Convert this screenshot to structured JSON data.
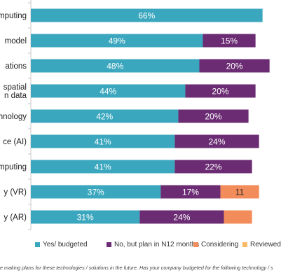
{
  "chart_data": {
    "type": "bar",
    "orientation": "horizontal",
    "stacked": true,
    "title": "",
    "xlabel": "",
    "ylabel": "",
    "xlim": [
      0,
      100
    ],
    "legend_position": "bottom",
    "categories": [
      [
        "omputing"
      ],
      [
        "model"
      ],
      [
        "ations"
      ],
      [
        "spatial",
        "n data"
      ],
      [
        "chnology"
      ],
      [
        "ce (AI)"
      ],
      [
        "mputing"
      ],
      [
        "y (VR)"
      ],
      [
        "y (AR)"
      ]
    ],
    "series": [
      {
        "name": "Yes/ budgeted",
        "color": "#3BA7BE",
        "values": [
          66,
          49,
          48,
          44,
          42,
          41,
          41,
          37,
          31
        ],
        "labels": [
          "66%",
          "49%",
          "48%",
          "44%",
          "42%",
          "41%",
          "41%",
          "37%",
          "31%"
        ]
      },
      {
        "name": "No, but plan in N12 months",
        "color": "#6B2C73",
        "values": [
          0,
          15,
          20,
          20,
          20,
          24,
          22,
          17,
          24
        ],
        "labels": [
          "",
          "15%",
          "20%",
          "20%",
          "20%",
          "24%",
          "22%",
          "17%",
          "24%"
        ]
      },
      {
        "name": "Considering",
        "color": "#F28C5B",
        "values": [
          0,
          0,
          0,
          0,
          0,
          0,
          0,
          11,
          8
        ],
        "labels": [
          "",
          "",
          "",
          "",
          "",
          "",
          "",
          "11",
          ""
        ]
      },
      {
        "name": "Reviewed",
        "color": "#F5B967",
        "values": [
          0,
          0,
          0,
          0,
          0,
          0,
          0,
          0,
          0
        ],
        "labels": [
          "",
          "",
          "",
          "",
          "",
          "",
          "",
          "",
          ""
        ]
      }
    ]
  },
  "legend": {
    "items": [
      {
        "label": "Yes/ budgeted",
        "color": "#3BA7BE"
      },
      {
        "label": "No, but plan in N12 months",
        "color": "#6B2C73"
      },
      {
        "label": "Considering",
        "color": "#F28C5B"
      },
      {
        "label": "Reviewed",
        "color": "#F5B967"
      }
    ]
  },
  "footnote": "e making plans for these technologies / solutions in the future.  Has your company budgeted for the following technology / s"
}
